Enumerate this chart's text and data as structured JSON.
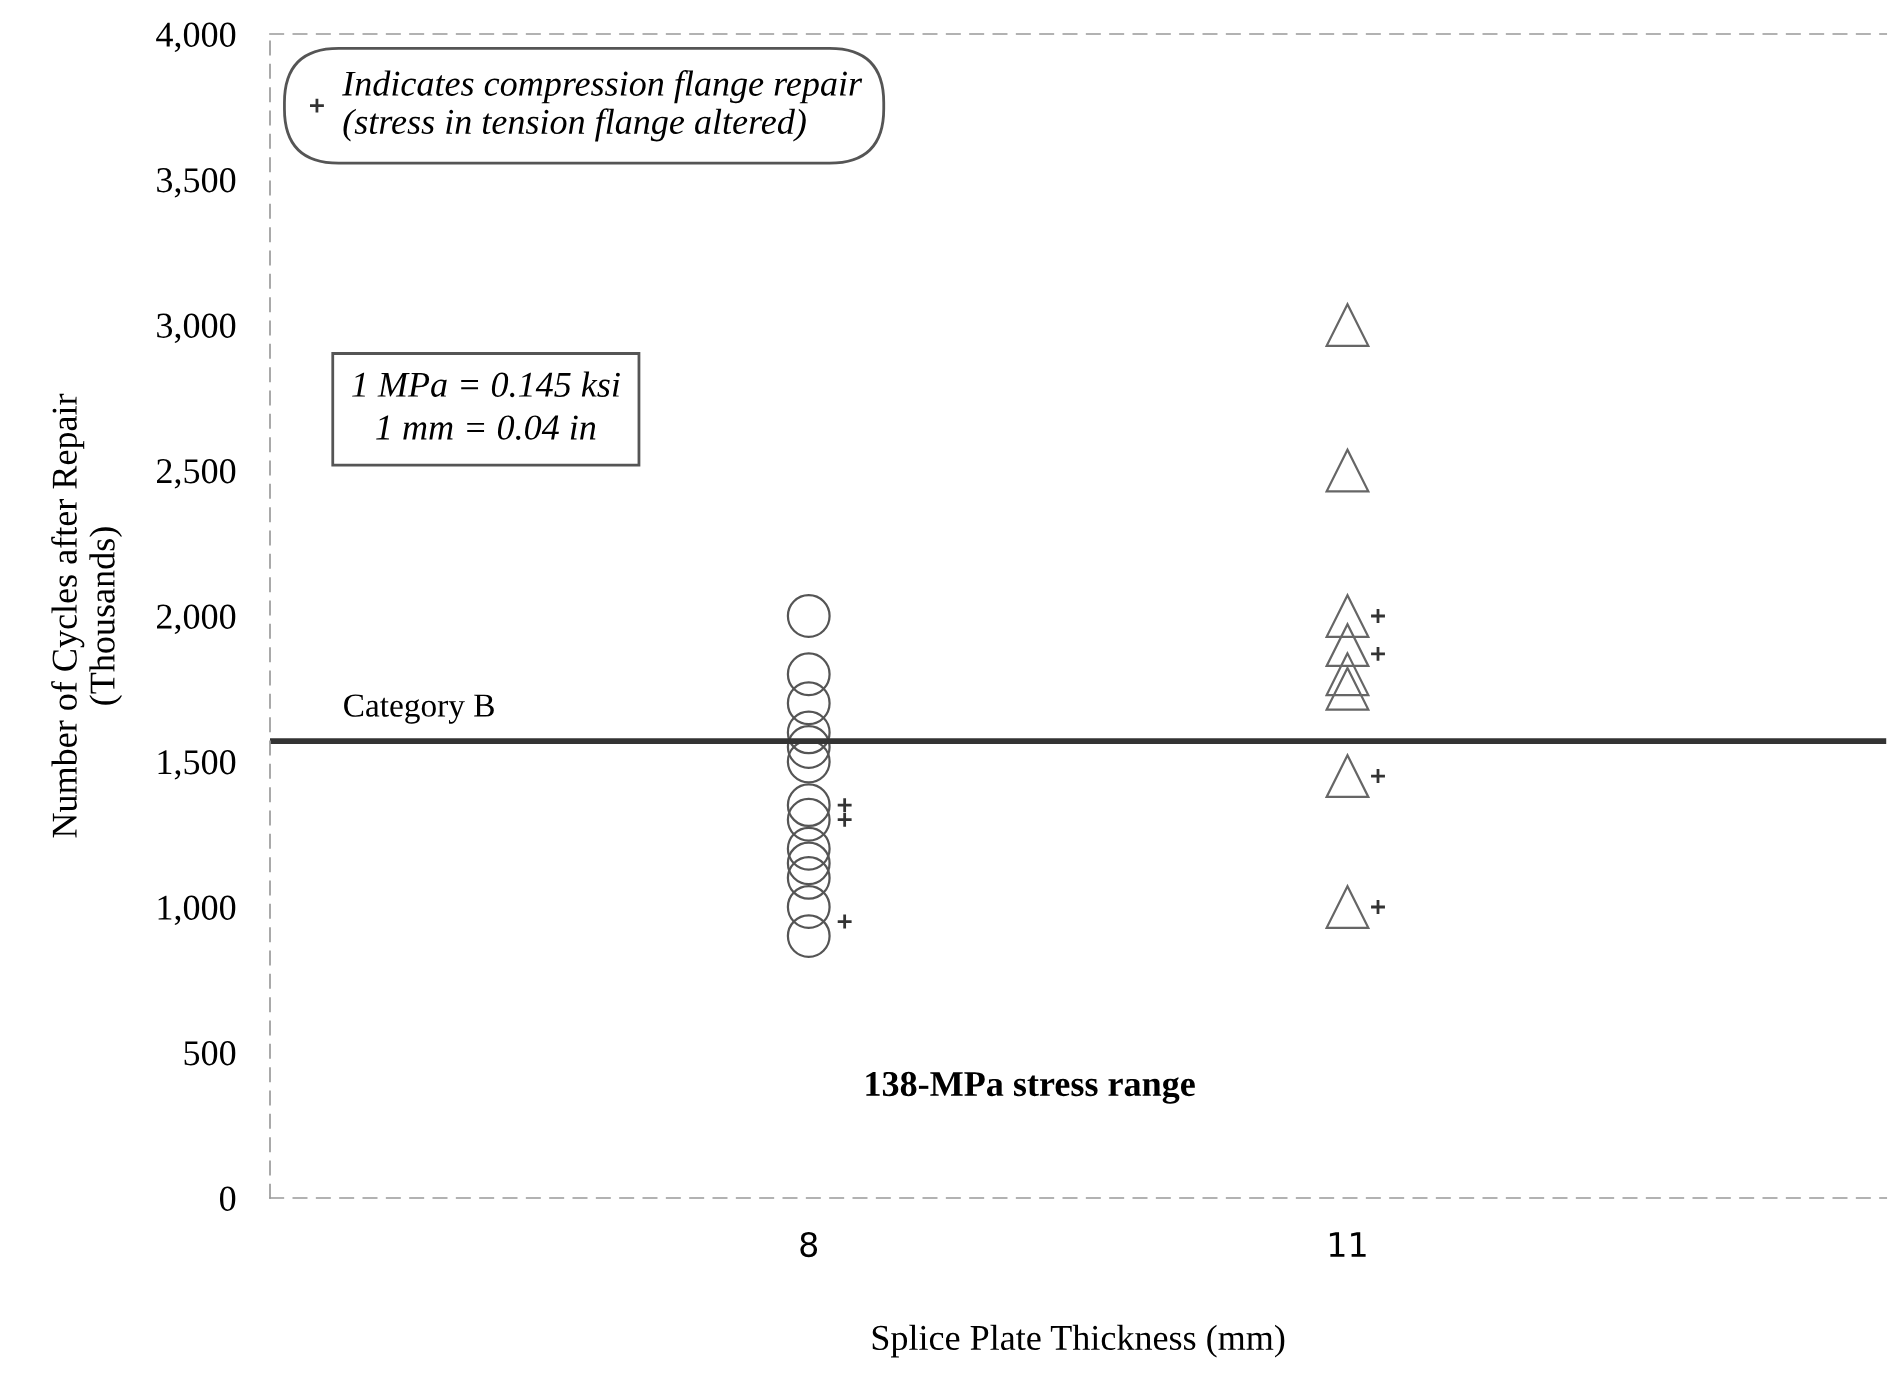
{
  "chart_data": {
    "type": "scatter",
    "xlabel": "Splice Plate Thickness (mm)",
    "ylabel": "Number of Cycles after Repair\n(Thousands)",
    "xlim": [
      5,
      14
    ],
    "xticks": [
      8,
      11
    ],
    "ylim": [
      0,
      4000
    ],
    "yticks": [
      {
        "value": 0,
        "label": "0"
      },
      {
        "value": 500,
        "label": "500"
      },
      {
        "value": 1000,
        "label": "1,000"
      },
      {
        "value": 1500,
        "label": "1,500"
      },
      {
        "value": 2000,
        "label": "2,000"
      },
      {
        "value": 2500,
        "label": "2,500"
      },
      {
        "value": 3000,
        "label": "3,000"
      },
      {
        "value": 3500,
        "label": "3,500"
      },
      {
        "value": 4000,
        "label": "4,000"
      }
    ],
    "series": [
      {
        "color": "#555555",
        "marker": "circle",
        "x": [
          8,
          8,
          8,
          8,
          8,
          8,
          8,
          8,
          8,
          8,
          8,
          8,
          8
        ],
        "values": [
          2000,
          1800,
          1700,
          1600,
          1550,
          1500,
          1350,
          1300,
          1200,
          1150,
          1100,
          1000,
          900
        ]
      },
      {
        "color": "#666666",
        "marker": "triangle",
        "x": [
          11,
          11,
          11,
          11,
          11,
          11,
          11,
          11
        ],
        "values": [
          3000,
          2500,
          2000,
          1900,
          1800,
          1750,
          1450,
          1000
        ]
      },
      {
        "name": "Indicates compression flange repair\n(stress in tension flange altered)",
        "color": "#333333",
        "marker": "cross",
        "x": [
          8.2,
          8.2,
          8.2,
          11.17,
          11.17,
          11.17,
          11.17
        ],
        "values": [
          1350,
          1300,
          950,
          2000,
          1870,
          1450,
          1000
        ]
      }
    ],
    "ref_lines": [
      {
        "axis": "y",
        "value": 1570,
        "label": "Category B",
        "color": "#333333"
      }
    ],
    "annotations": [
      "138-MPa stress range",
      "1 MPa = 0.145 ksi\n1 mm = 0.04 in"
    ],
    "legend": "top left"
  }
}
